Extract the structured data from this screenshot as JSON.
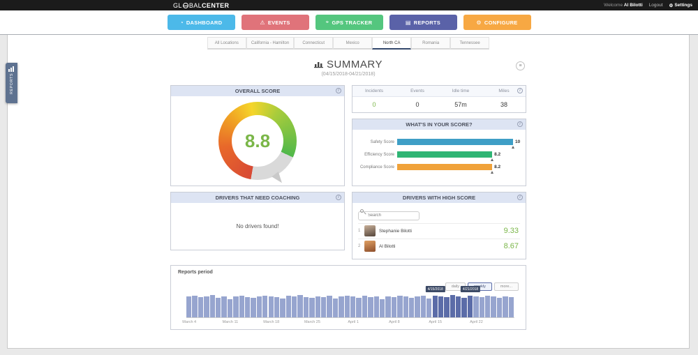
{
  "icons": {
    "info_glyph": "i",
    "menu_glyph": "≡",
    "settings_glyph": "⚙"
  },
  "topbar": {
    "logo_pre": "GL",
    "logo_post": "BAL",
    "logo_bold": "CENTER",
    "welcome_label": "Welcome",
    "username": "Al Bilotti",
    "logout_label": "Logout",
    "settings_label": "Settings"
  },
  "nav": {
    "items": [
      {
        "id": "dashboard",
        "label": "DASHBOARD",
        "color": "#4cb9e9",
        "icon": "gauge-icon",
        "glyph": "◔"
      },
      {
        "id": "events",
        "label": "EVENTS",
        "color": "#e0737a",
        "icon": "warning-icon",
        "glyph": "⚠"
      },
      {
        "id": "gps-tracker",
        "label": "GPS TRACKER",
        "color": "#54c67e",
        "icon": "target-icon",
        "glyph": "⌖"
      },
      {
        "id": "reports",
        "label": "REPORTS",
        "color": "#5a62a8",
        "icon": "report-icon",
        "glyph": "▤",
        "active": true
      },
      {
        "id": "configure",
        "label": "CONFIGURE",
        "color": "#f7a843",
        "icon": "wrench-icon",
        "glyph": "⚙"
      }
    ]
  },
  "location_tabs": {
    "items": [
      "All Locations",
      "California - Hamilton",
      "Connecticut",
      "Mexico",
      "North CA",
      "Romania",
      "Tennessee"
    ],
    "active": "North CA"
  },
  "side_tab": {
    "label": "REPORTS"
  },
  "page": {
    "title": "SUMMARY",
    "subtitle": "(04/15/2018-04/21/2018)"
  },
  "overall_score": {
    "title": "OVERALL SCORE",
    "value": "8.8",
    "value_color": "#7ab648"
  },
  "stats": {
    "columns": [
      {
        "label": "Incidents",
        "value": "0",
        "highlight": true
      },
      {
        "label": "Events",
        "value": "0"
      },
      {
        "label": "Idle time",
        "value": "57m"
      },
      {
        "label": "Miles",
        "value": "38"
      }
    ]
  },
  "score_breakdown": {
    "title": "WHAT'S IN YOUR SCORE?",
    "rows": [
      {
        "label": "Safety Score",
        "value": "10",
        "pct": 100,
        "color": "#3e9ec6"
      },
      {
        "label": "Efficiency Score",
        "value": "8.2",
        "pct": 82,
        "color": "#2fb574"
      },
      {
        "label": "Compliance Score",
        "value": "8.2",
        "pct": 82,
        "color": "#f0a23a"
      }
    ]
  },
  "coaching": {
    "title": "DRIVERS THAT NEED COACHING",
    "empty_text": "No drivers found!"
  },
  "high_score": {
    "title": "DRIVERS WITH HIGH SCORE",
    "search_placeholder": "Search",
    "score_color": "#7ab648",
    "drivers": [
      {
        "rank": "1",
        "name": "Stephanie Bilotti",
        "score": "9.33",
        "avatar_from": "#c9b099",
        "avatar_to": "#54453a"
      },
      {
        "rank": "2",
        "name": "Al Bilotti",
        "score": "8.67",
        "avatar_from": "#e0a063",
        "avatar_to": "#8e4f2c"
      }
    ]
  },
  "reports_period": {
    "title": "Reports period",
    "buttons": [
      "daily",
      "weekly",
      "more..."
    ],
    "active_button": "weekly",
    "chart": {
      "type": "bar",
      "bar_color": "#97a5cf",
      "selected_color": "#5b6ca8",
      "values": [
        30,
        31,
        29,
        30,
        32,
        28,
        30,
        26,
        30,
        31,
        29,
        28,
        30,
        31,
        30,
        29,
        27,
        31,
        30,
        32,
        29,
        28,
        30,
        29,
        31,
        27,
        30,
        31,
        30,
        28,
        31,
        29,
        30,
        26,
        30,
        29,
        31,
        30,
        28,
        30,
        31,
        27,
        31,
        30,
        29,
        32,
        30,
        28,
        31,
        30,
        29,
        31,
        30,
        28,
        30,
        29
      ],
      "selected_start": 42,
      "selected_end": 48,
      "tooltips": [
        "4/15/2018",
        "4/21/2018"
      ],
      "x_labels": [
        "March 4",
        "March 11",
        "March 18",
        "March 25",
        "April 1",
        "April 8",
        "April 15",
        "April 22"
      ],
      "label_every": 7
    }
  },
  "chart_data": [
    {
      "type": "gauge",
      "title": "OVERALL SCORE",
      "value": 8.8,
      "min": 0,
      "max": 10
    },
    {
      "type": "bar",
      "orientation": "horizontal",
      "title": "WHAT'S IN YOUR SCORE?",
      "categories": [
        "Safety Score",
        "Efficiency Score",
        "Compliance Score"
      ],
      "values": [
        10,
        8.2,
        8.2
      ],
      "xlim": [
        0,
        10
      ]
    },
    {
      "type": "bar",
      "title": "Reports period",
      "x_labels": [
        "March 4",
        "March 11",
        "March 18",
        "March 25",
        "April 1",
        "April 8",
        "April 15",
        "April 22"
      ],
      "values": [
        30,
        31,
        29,
        30,
        32,
        28,
        30,
        26,
        30,
        31,
        29,
        28,
        30,
        31,
        30,
        29,
        27,
        31,
        30,
        32,
        29,
        28,
        30,
        29,
        31,
        27,
        30,
        31,
        30,
        28,
        31,
        29,
        30,
        26,
        30,
        29,
        31,
        30,
        28,
        30,
        31,
        27,
        31,
        30,
        29,
        32,
        30,
        28,
        31,
        30,
        29,
        31,
        30,
        28,
        30,
        29
      ],
      "selected_period": [
        "4/15/2018",
        "4/21/2018"
      ],
      "legend": "off",
      "grid": "off"
    }
  ]
}
